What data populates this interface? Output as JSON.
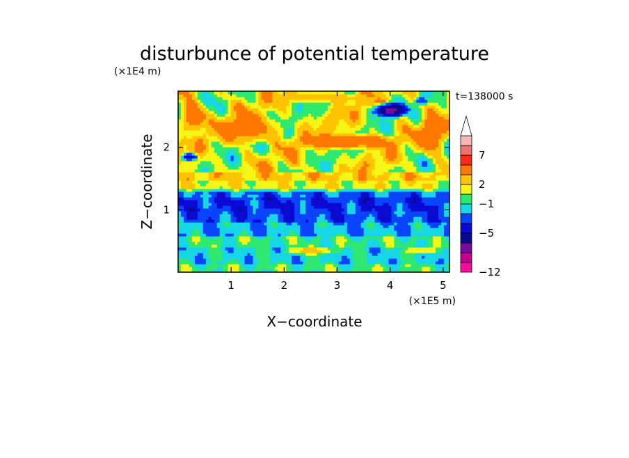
{
  "chart_data": {
    "type": "heatmap",
    "title": "disturbunce of potential temperature",
    "time_label": "t=138000 s",
    "xlabel": "X−coordinate",
    "ylabel": "Z−coordinate",
    "x_scale_label": "(×1E5 m)",
    "y_scale_label": "(×1E4 m)",
    "x_ticks": [
      "1",
      "2",
      "3",
      "4",
      "5"
    ],
    "y_ticks": [
      "1",
      "2"
    ],
    "x_tick_values": [
      1,
      2,
      3,
      4,
      5
    ],
    "y_tick_values": [
      1,
      2
    ],
    "xlim": [
      0,
      5.12
    ],
    "ylim": [
      0,
      2.9
    ],
    "grid": false,
    "colorbar": {
      "labels": [
        "7",
        "2",
        "−1",
        "−5",
        "−12"
      ],
      "label_values": [
        7,
        2,
        -1,
        -5,
        -12
      ],
      "colors": [
        "#ff0a9c",
        "#c10090",
        "#7a0a9e",
        "#0a0a8a",
        "#0a0ad2",
        "#0a44ff",
        "#17d6e6",
        "#2fe870",
        "#f5f516",
        "#ffc300",
        "#ff7800",
        "#ff2a1a",
        "#f07070",
        "#f7b8b8",
        "#ffffff"
      ],
      "extend": "max"
    },
    "fields": {
      "background_value": -0.6,
      "structures": [
        {
          "shape": "band",
          "z_range": [
            0.0,
            0.12
          ],
          "value": -0.6
        },
        {
          "shape": "band",
          "z_range": [
            0.12,
            0.38
          ],
          "value": -1.3
        },
        {
          "shape": "band",
          "z_range": [
            0.38,
            0.6
          ],
          "value": -0.7
        },
        {
          "shape": "band",
          "z_range": [
            0.6,
            0.8
          ],
          "value": -1.8
        },
        {
          "shape": "band",
          "z_range": [
            0.8,
            1.0
          ],
          "value": -2.6
        },
        {
          "shape": "band",
          "z_range": [
            1.0,
            1.2
          ],
          "value": -2.9
        },
        {
          "shape": "band",
          "z_range": [
            1.2,
            1.28
          ],
          "value": -2.3
        },
        {
          "shape": "band",
          "z_range": [
            1.28,
            1.36
          ],
          "value": -0.9
        },
        {
          "shape": "band",
          "z_range": [
            1.36,
            1.48
          ],
          "value": 0.6
        },
        {
          "shape": "band",
          "z_range": [
            1.48,
            1.6
          ],
          "value": 1.3
        },
        {
          "shape": "band",
          "z_range": [
            1.6,
            2.9
          ],
          "value": 0.5
        },
        {
          "shape": "blob",
          "x": 4.0,
          "z": 2.6,
          "rx": 0.4,
          "rz": 0.15,
          "value": -5.5
        },
        {
          "shape": "blob",
          "x": 0.22,
          "z": 1.85,
          "rx": 0.2,
          "rz": 0.08,
          "value": -4
        },
        {
          "shape": "blob",
          "x": 4.6,
          "z": 2.75,
          "rx": 0.15,
          "rz": 0.08,
          "value": -3
        },
        {
          "shape": "blob",
          "x": 3.2,
          "z": 2.1,
          "rx": 1.2,
          "rz": 0.15,
          "value": 3
        },
        {
          "shape": "blob",
          "x": 1.3,
          "z": 2.3,
          "rx": 0.8,
          "rz": 0.3,
          "value": 2.5
        },
        {
          "shape": "blob",
          "x": 0.3,
          "z": 2.5,
          "rx": 0.3,
          "rz": 0.3,
          "value": 3
        },
        {
          "shape": "blob",
          "x": 2.8,
          "z": 2.8,
          "rx": 1.2,
          "rz": 0.1,
          "value": 1.5
        },
        {
          "shape": "blob",
          "x": 4.8,
          "z": 2.2,
          "rx": 0.3,
          "rz": 0.4,
          "value": 3
        },
        {
          "shape": "blob",
          "x": 2.5,
          "z": 0.35,
          "rx": 0.6,
          "rz": 0.08,
          "value": 1.5
        },
        {
          "shape": "blob",
          "x": 4.6,
          "z": 0.35,
          "rx": 0.4,
          "rz": 0.07,
          "value": 1
        }
      ]
    }
  }
}
